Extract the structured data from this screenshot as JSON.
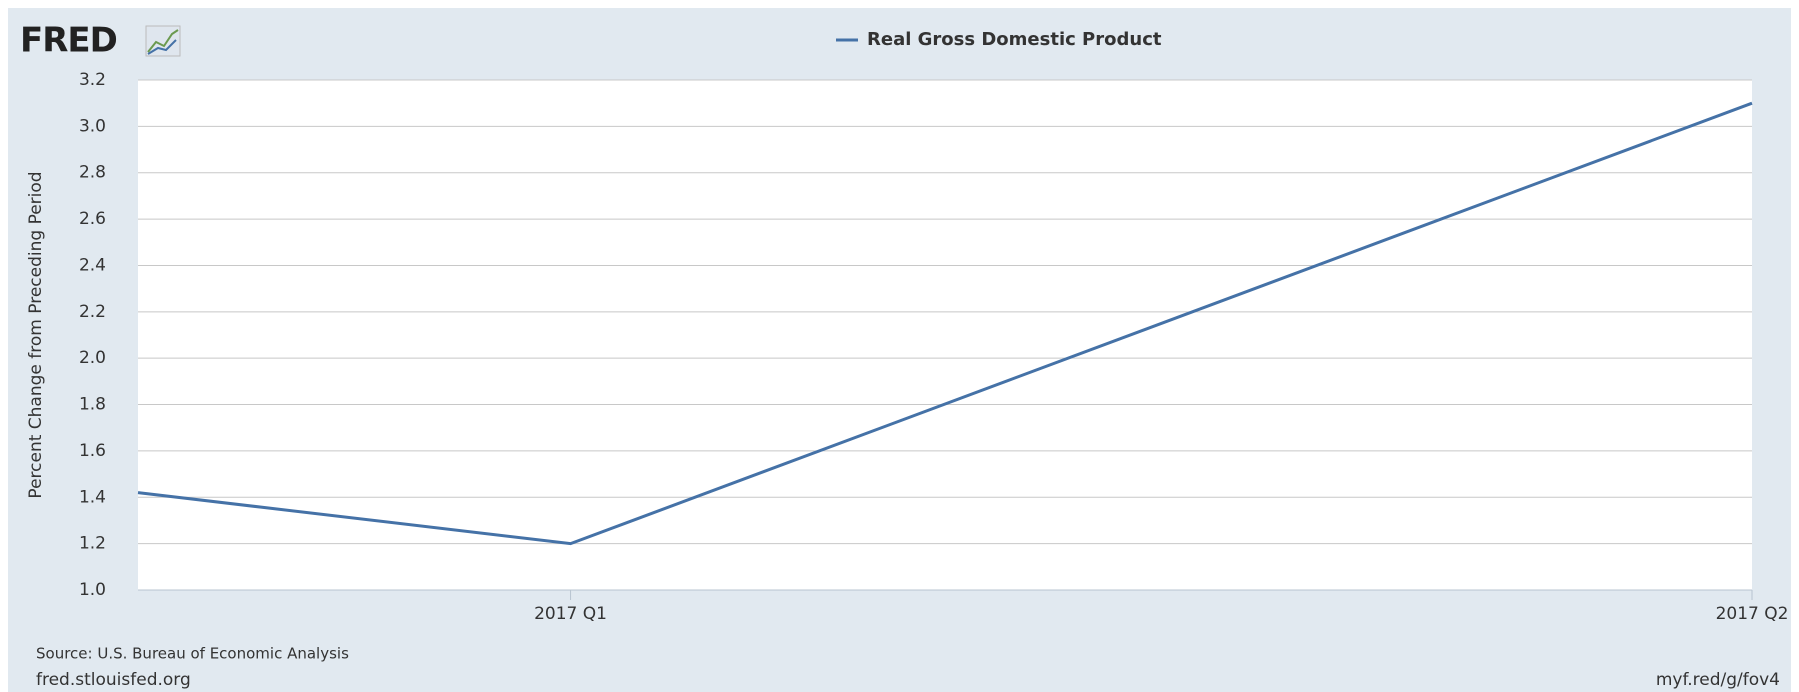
{
  "chart_data": {
    "type": "line",
    "logo": "FRED",
    "categories": [
      null,
      "2017 Q1",
      "2017 Q2"
    ],
    "series": [
      {
        "name": "Real Gross Domestic Product",
        "color": "#4572a7",
        "values": [
          1.42,
          1.2,
          3.1
        ]
      }
    ],
    "y_label": "Percent Change from Preceding Period",
    "ylim": [
      1.0,
      3.2
    ],
    "yticks": [
      {
        "value": 1.0,
        "label": "1.0"
      },
      {
        "value": 1.2,
        "label": "1.2"
      },
      {
        "value": 1.4,
        "label": "1.4"
      },
      {
        "value": 1.6,
        "label": "1.6"
      },
      {
        "value": 1.8,
        "label": "1.8"
      },
      {
        "value": 2.0,
        "label": "2.0"
      },
      {
        "value": 2.2,
        "label": "2.2"
      },
      {
        "value": 2.4,
        "label": "2.4"
      },
      {
        "value": 2.6,
        "label": "2.6"
      },
      {
        "value": 2.8,
        "label": "2.8"
      },
      {
        "value": 3.0,
        "label": "3.0"
      },
      {
        "value": 3.2,
        "label": "3.2"
      }
    ],
    "grid": true,
    "source": "Source: U.S. Bureau of Economic Analysis",
    "footer_left": "fred.stlouisfed.org",
    "footer_right": "myf.red/g/fov4"
  }
}
